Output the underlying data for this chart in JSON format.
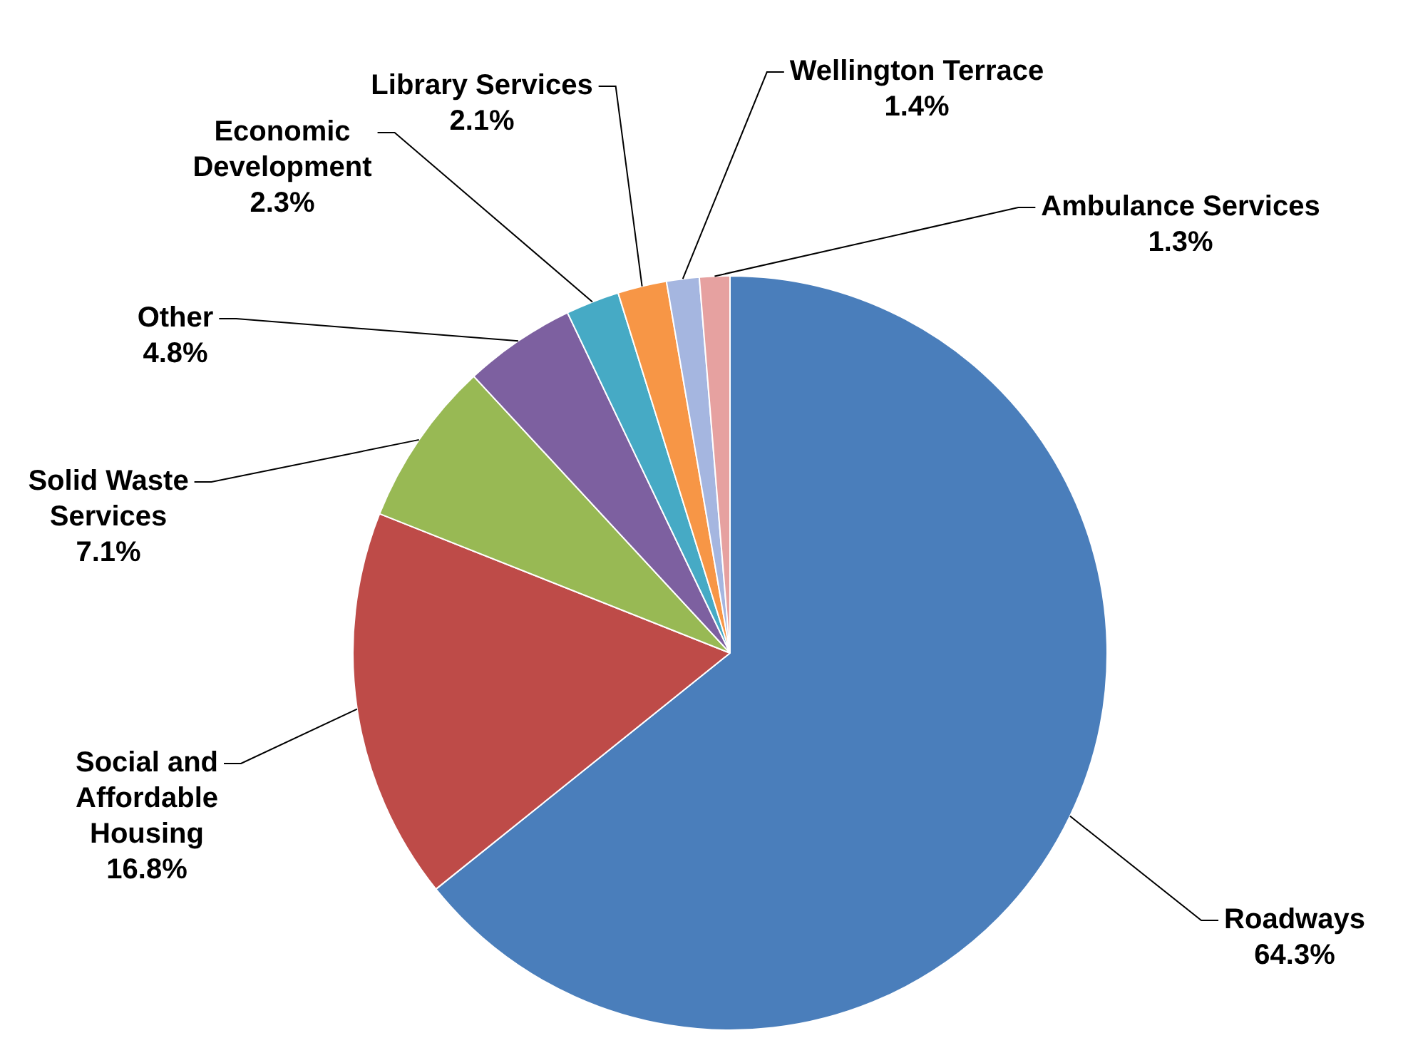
{
  "chart_data": {
    "type": "pie",
    "categories": [
      "Roadways",
      "Social and Affordable Housing",
      "Solid Waste Services",
      "Other",
      "Economic Development",
      "Library Services",
      "Wellington Terrace",
      "Ambulance Services"
    ],
    "values": [
      64.3,
      16.8,
      7.1,
      4.8,
      2.3,
      2.1,
      1.4,
      1.3
    ],
    "value_labels": [
      "64.3%",
      "16.8%",
      "7.1%",
      "4.8%",
      "2.3%",
      "2.1%",
      "1.4%",
      "1.3%"
    ],
    "colors": [
      "#4a7ebb",
      "#be4b48",
      "#98b954",
      "#7d60a0",
      "#46aac5",
      "#f79646",
      "#a5b6e0",
      "#e6a1a0"
    ],
    "legend": false
  }
}
